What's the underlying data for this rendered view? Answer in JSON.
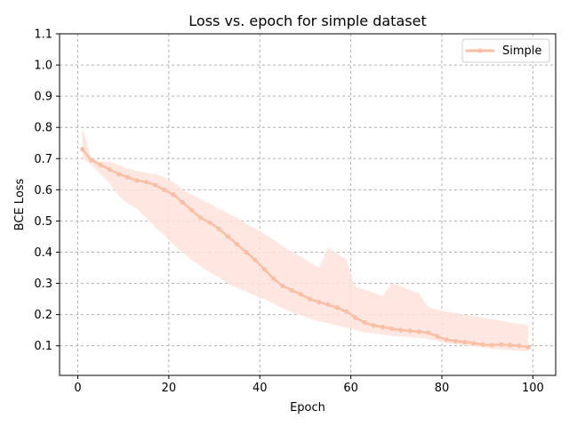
{
  "chart_data": {
    "type": "line",
    "title": "Loss vs. epoch for simple dataset",
    "xlabel": "Epoch",
    "ylabel": "BCE Loss",
    "xlim": [
      -4,
      105
    ],
    "ylim": [
      0.005,
      1.1
    ],
    "xticks": [
      0,
      20,
      40,
      60,
      80,
      100
    ],
    "yticks": [
      0.1,
      0.2,
      0.3,
      0.4,
      0.5,
      0.6,
      0.7,
      0.8,
      0.9,
      1.0,
      1.1
    ],
    "xtick_labels": [
      "0",
      "20",
      "40",
      "60",
      "80",
      "100"
    ],
    "ytick_labels": [
      "0.1",
      "0.2",
      "0.3",
      "0.4",
      "0.5",
      "0.6",
      "0.7",
      "0.8",
      "0.9",
      "1.0",
      "1.1"
    ],
    "grid": true,
    "legend_position": "top-right",
    "series": [
      {
        "name": "Simple",
        "color": "#f9bfa5",
        "band_color": "#fde3da",
        "x": [
          1,
          3,
          5,
          7,
          9,
          11,
          13,
          15,
          17,
          19,
          21,
          23,
          25,
          27,
          29,
          31,
          33,
          35,
          37,
          39,
          41,
          43,
          45,
          47,
          49,
          51,
          53,
          55,
          57,
          59,
          61,
          63,
          65,
          67,
          69,
          71,
          73,
          75,
          77,
          79,
          81,
          83,
          85,
          87,
          89,
          91,
          93,
          95,
          97,
          99
        ],
        "values": [
          0.73,
          0.695,
          0.68,
          0.665,
          0.65,
          0.64,
          0.63,
          0.625,
          0.615,
          0.6,
          0.585,
          0.56,
          0.535,
          0.51,
          0.495,
          0.475,
          0.45,
          0.425,
          0.4,
          0.375,
          0.345,
          0.315,
          0.292,
          0.278,
          0.265,
          0.25,
          0.24,
          0.232,
          0.222,
          0.21,
          0.19,
          0.175,
          0.165,
          0.16,
          0.155,
          0.15,
          0.148,
          0.145,
          0.142,
          0.13,
          0.12,
          0.115,
          0.112,
          0.108,
          0.104,
          0.102,
          0.104,
          0.102,
          0.1,
          0.095
        ],
        "band_lower": [
          0.7,
          0.68,
          0.65,
          0.62,
          0.58,
          0.555,
          0.54,
          0.51,
          0.48,
          0.455,
          0.425,
          0.4,
          0.375,
          0.355,
          0.335,
          0.32,
          0.3,
          0.285,
          0.275,
          0.26,
          0.25,
          0.235,
          0.22,
          0.208,
          0.198,
          0.188,
          0.178,
          0.172,
          0.165,
          0.158,
          0.15,
          0.143,
          0.14,
          0.135,
          0.132,
          0.13,
          0.127,
          0.125,
          0.122,
          0.115,
          0.108,
          0.105,
          0.102,
          0.098,
          0.094,
          0.09,
          0.088,
          0.086,
          0.084,
          0.082
        ],
        "band_upper": [
          0.8,
          0.7,
          0.69,
          0.69,
          0.68,
          0.668,
          0.66,
          0.655,
          0.65,
          0.64,
          0.625,
          0.6,
          0.585,
          0.57,
          0.555,
          0.54,
          0.525,
          0.51,
          0.492,
          0.475,
          0.458,
          0.44,
          0.42,
          0.402,
          0.385,
          0.368,
          0.35,
          0.415,
          0.395,
          0.378,
          0.29,
          0.28,
          0.27,
          0.26,
          0.3,
          0.292,
          0.278,
          0.268,
          0.225,
          0.215,
          0.21,
          0.205,
          0.2,
          0.195,
          0.19,
          0.185,
          0.18,
          0.175,
          0.17,
          0.165
        ]
      }
    ]
  }
}
